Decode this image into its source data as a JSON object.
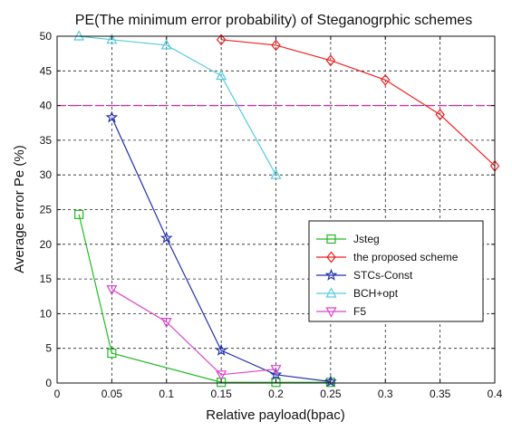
{
  "chart_data": {
    "type": "line",
    "title": "PE(The minimum error probability) of Steganogrphic schemes",
    "xlabel": "Relative payload(bpac)",
    "ylabel": "Average error Pe (%)",
    "xlim": [
      0,
      0.4
    ],
    "ylim": [
      0,
      50
    ],
    "xticks": [
      0,
      0.05,
      0.1,
      0.15,
      0.2,
      0.25,
      0.3,
      0.35,
      0.4
    ],
    "xtick_labels": [
      "0",
      "0.05",
      "0.1",
      "0.15",
      "0.2",
      "0.25",
      "0.3",
      "0.35",
      "0.4"
    ],
    "yticks": [
      0,
      5,
      10,
      15,
      20,
      25,
      30,
      35,
      40,
      45,
      50
    ],
    "ytick_labels": [
      "0",
      "5",
      "10",
      "15",
      "20",
      "25",
      "30",
      "35",
      "40",
      "45",
      "50"
    ],
    "grid": true,
    "legend_position": "lower-right",
    "series": [
      {
        "name": "Jsteg",
        "color": "#22bb22",
        "marker": "square",
        "x": [
          0.02,
          0.05,
          0.15,
          0.2,
          0.25
        ],
        "y": [
          24.3,
          4.3,
          0.1,
          0.1,
          0.1
        ]
      },
      {
        "name": "the proposed scheme",
        "color": "#ee2222",
        "marker": "diamond",
        "x": [
          0.15,
          0.2,
          0.25,
          0.3,
          0.35,
          0.4
        ],
        "y": [
          49.5,
          48.7,
          46.5,
          43.7,
          38.7,
          31.3
        ]
      },
      {
        "name": "STCs-Const",
        "color": "#2233aa",
        "marker": "star",
        "x": [
          0.05,
          0.1,
          0.15,
          0.2,
          0.25
        ],
        "y": [
          38.3,
          20.9,
          4.7,
          1.2,
          0.2
        ]
      },
      {
        "name": "BCH+opt",
        "color": "#55ccdd",
        "marker": "triangle-up",
        "x": [
          0.02,
          0.05,
          0.1,
          0.15,
          0.2
        ],
        "y": [
          50.0,
          49.5,
          48.7,
          44.3,
          30.0
        ]
      },
      {
        "name": "F5",
        "color": "#dd44cc",
        "marker": "triangle-down",
        "x": [
          0.05,
          0.1,
          0.15,
          0.2
        ],
        "y": [
          13.5,
          8.8,
          1.2,
          2.0
        ]
      }
    ],
    "reference_line": {
      "y": 40,
      "color": "#cc33aa"
    }
  }
}
